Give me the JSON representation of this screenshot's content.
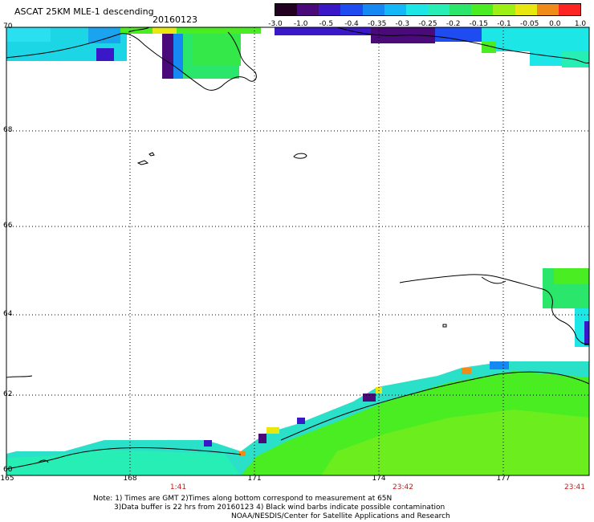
{
  "title": "ASCAT 25KM MLE-1 descending",
  "date": "20160123",
  "colorbar": {
    "labels": [
      "-3.0",
      "-1.0",
      "-0.5",
      "-0.4",
      "-0.35",
      "-0.3",
      "-0.25",
      "-0.2",
      "-0.15",
      "-0.1",
      "-0.05",
      "0.0",
      "1.0"
    ],
    "colors": [
      "#220020",
      "#4a0a7a",
      "#3a18c8",
      "#1e4cf0",
      "#1688f4",
      "#14b8f8",
      "#1ce6e6",
      "#26eeb4",
      "#2ae66a",
      "#4aec22",
      "#9cf014",
      "#e8e810",
      "#f08a18",
      "#ff2424"
    ]
  },
  "lat_labels": [
    "70",
    "68",
    "66",
    "64",
    "62",
    "60"
  ],
  "lon_labels": [
    "165",
    "168",
    "171",
    "174",
    "177"
  ],
  "time_labels": [
    "1:41",
    "23:42",
    "23:41"
  ],
  "notes": [
    "Note: 1) Times are GMT 2)Times along bottom correspond to measurement at 65N",
    "3)Data buffer is 22 hrs from 20160123 4) Black wind barbs indicate possible contamination",
    "NOAA/NESDIS/Center for Satellite Applications and Research"
  ]
}
